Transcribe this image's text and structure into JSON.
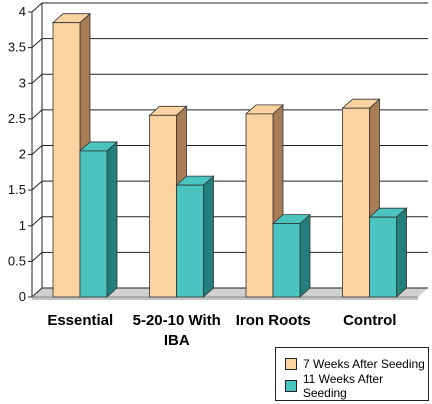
{
  "chart_data": {
    "type": "bar",
    "title": "",
    "xlabel": "",
    "ylabel": "",
    "categories": [
      "Essential",
      "5-20-10 With IBA",
      "Iron Roots",
      "Control"
    ],
    "series": [
      {
        "name": "7 Weeks After Seeding",
        "values": [
          3.85,
          2.55,
          2.57,
          2.65
        ],
        "color": "#FAD3A0",
        "side_color": "#A87C55"
      },
      {
        "name": "11 Weeks After Seeding",
        "values": [
          2.05,
          1.57,
          1.03,
          1.12
        ],
        "color": "#4AC4C0",
        "side_color": "#237F7B"
      }
    ],
    "ylim": [
      0,
      4
    ],
    "yticks": [
      "0",
      "0.5",
      "1",
      "1.5",
      "2",
      "2.5",
      "3",
      "3.5",
      "4"
    ],
    "grid": true,
    "legend_position": "bottom-right",
    "style": "3d-clustered-columns"
  }
}
